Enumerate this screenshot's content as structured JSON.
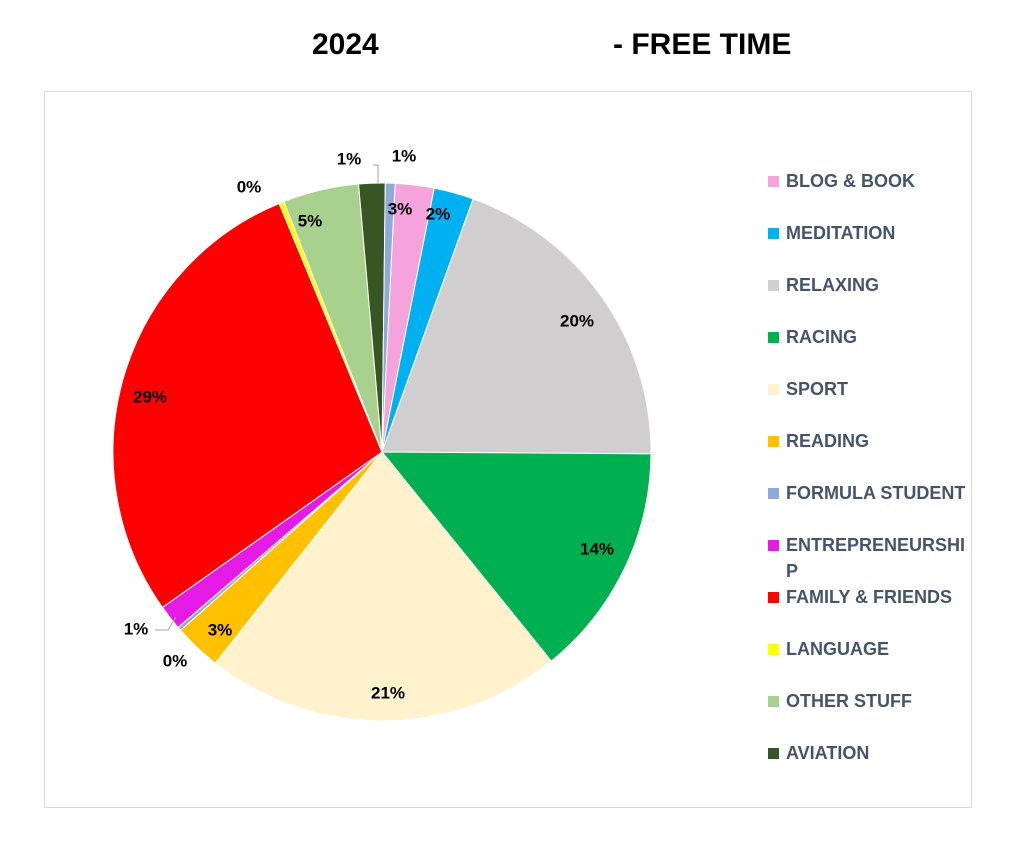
{
  "title": {
    "year": "2024",
    "subtitle": "- FREE TIME"
  },
  "chart_data": {
    "type": "pie",
    "title": "2024 - FREE TIME",
    "legend_position": "right",
    "unit": "%",
    "slices": [
      {
        "name": "BLOG & BOOK",
        "value": 3,
        "label": "3%",
        "color": "#f4a3dd"
      },
      {
        "name": "MEDITATION",
        "value": 2,
        "label": "2%",
        "color": "#00b0f0"
      },
      {
        "name": "RELAXING",
        "value": 20,
        "label": "20%",
        "color": "#d0cece"
      },
      {
        "name": "RACING",
        "value": 14,
        "label": "14%",
        "color": "#00b050"
      },
      {
        "name": "SPORT",
        "value": 21,
        "label": "21%",
        "color": "#fff2cc"
      },
      {
        "name": "READING",
        "value": 3,
        "label": "3%",
        "color": "#ffc000"
      },
      {
        "name": "FORMULA STUDENT",
        "value": 0,
        "label": "0%",
        "color": "#8eaadb"
      },
      {
        "name": "ENTREPRENEURSHIP",
        "value": 1,
        "label": "1%",
        "color": "#e51ae5"
      },
      {
        "name": "FAMILY & FRIENDS",
        "value": 29,
        "label": "29%",
        "color": "#ff0000"
      },
      {
        "name": "LANGUAGE",
        "value": 0,
        "label": "0%",
        "color": "#ffff00"
      },
      {
        "name": "OTHER STUFF",
        "value": 5,
        "label": "5%",
        "color": "#a9d18e"
      },
      {
        "name": "AVIATION",
        "value": 1,
        "label": "1%",
        "color": "#375623"
      },
      {
        "name": "",
        "value": 1,
        "label": "1%",
        "color": "#8eaadb"
      }
    ],
    "legend": [
      {
        "label": "BLOG & BOOK",
        "color": "#f4a3dd"
      },
      {
        "label": "MEDITATION",
        "color": "#00b0f0"
      },
      {
        "label": "RELAXING",
        "color": "#d0cece"
      },
      {
        "label": "RACING",
        "color": "#00b050"
      },
      {
        "label": "SPORT",
        "color": "#fff2cc"
      },
      {
        "label": "READING",
        "color": "#ffc000"
      },
      {
        "label": "FORMULA STUDENT",
        "color": "#8eaadb"
      },
      {
        "label": "ENTREPRENEURSHIP",
        "color": "#e51ae5"
      },
      {
        "label": "FAMILY & FRIENDS",
        "color": "#ff0000"
      },
      {
        "label": "LANGUAGE",
        "color": "#ffff00"
      },
      {
        "label": "OTHER STUFF",
        "color": "#a9d18e"
      },
      {
        "label": "AVIATION",
        "color": "#375623"
      }
    ]
  }
}
